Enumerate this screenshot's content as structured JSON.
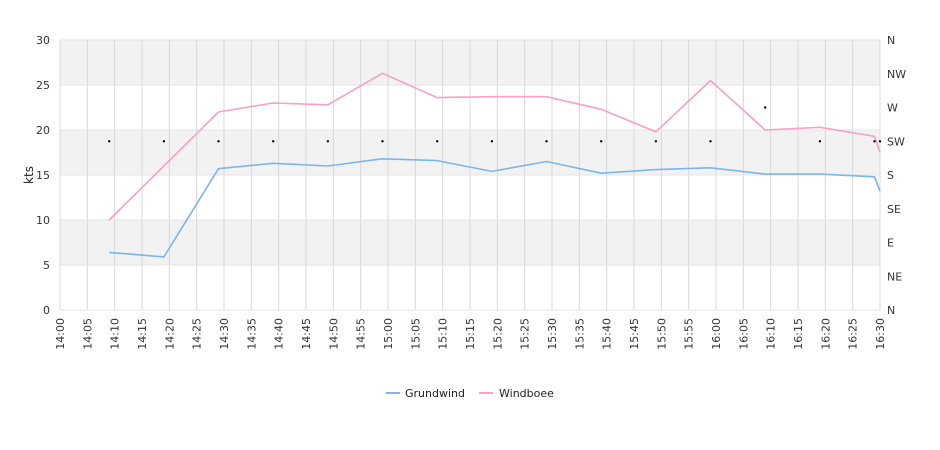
{
  "chart_data": {
    "type": "line",
    "ylabel": "kts",
    "ylim": [
      0,
      30
    ],
    "yticks": [
      "0",
      "5",
      "10",
      "15",
      "20",
      "25",
      "30"
    ],
    "y2ticks": [
      "N",
      "NE",
      "E",
      "SE",
      "S",
      "SW",
      "W",
      "NW",
      "N"
    ],
    "xticks": [
      "14:00",
      "14:05",
      "14:10",
      "14:15",
      "14:20",
      "14:25",
      "14:30",
      "14:35",
      "14:40",
      "14:45",
      "14:50",
      "14:55",
      "15:00",
      "15:05",
      "15:10",
      "15:15",
      "15:20",
      "15:25",
      "15:30",
      "15:35",
      "15:40",
      "15:45",
      "15:50",
      "15:55",
      "16:00",
      "16:05",
      "16:10",
      "16:15",
      "16:20",
      "16:25",
      "16:30"
    ],
    "grid": true,
    "legend_position": "bottom",
    "colors": {
      "Grundwind": "#7cb5ec",
      "Windboee": "#f7a1c4",
      "direction": "#000000",
      "band": "#f2f2f2",
      "gridline": "#d8d8d8"
    },
    "series": [
      {
        "name": "Grundwind",
        "x": [
          "14:09",
          "14:19",
          "14:29",
          "14:39",
          "14:49",
          "14:59",
          "15:09",
          "15:19",
          "15:29",
          "15:39",
          "15:49",
          "15:59",
          "16:09",
          "16:19",
          "16:29",
          "16:30"
        ],
        "values": [
          6.4,
          5.9,
          15.7,
          16.3,
          16.0,
          16.8,
          16.6,
          15.4,
          16.5,
          15.2,
          15.6,
          15.8,
          15.1,
          15.1,
          14.8,
          13.2
        ]
      },
      {
        "name": "Windboee",
        "x": [
          "14:09",
          "14:19",
          "14:29",
          "14:39",
          "14:49",
          "14:59",
          "15:09",
          "15:19",
          "15:29",
          "15:39",
          "15:49",
          "15:59",
          "16:09",
          "16:19",
          "16:29",
          "16:30"
        ],
        "values": [
          10.0,
          16.0,
          22.0,
          23.0,
          22.8,
          26.3,
          23.6,
          23.7,
          23.7,
          22.3,
          19.8,
          25.5,
          20.0,
          20.3,
          19.3,
          17.5
        ]
      }
    ],
    "direction": {
      "x": [
        "14:09",
        "14:19",
        "14:29",
        "14:39",
        "14:49",
        "14:59",
        "15:09",
        "15:19",
        "15:29",
        "15:39",
        "15:49",
        "15:59",
        "16:09",
        "16:19",
        "16:29",
        "16:30"
      ],
      "values": [
        "SW",
        "SW",
        "SW",
        "SW",
        "SW",
        "SW",
        "SW",
        "SW",
        "SW",
        "SW",
        "SW",
        "SW",
        "W",
        "SW",
        "SW",
        "SW"
      ]
    }
  }
}
